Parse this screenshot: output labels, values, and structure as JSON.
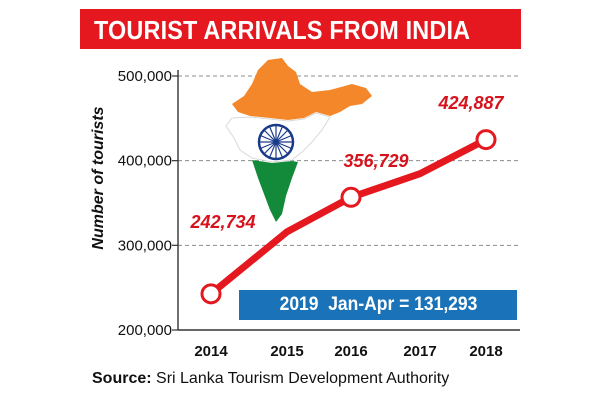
{
  "source": {
    "label": "Source:",
    "text": "Sri Lanka Tourism Development Authority"
  },
  "note": "2019  Jan-Apr = 131,293",
  "colors": {
    "title_bg": "#e4181e",
    "line": "#e4181e",
    "label": "#d6121c",
    "note_bg": "#1a73b8",
    "india_saffron": "#f4872a",
    "india_green": "#138a3a",
    "chakra": "#1a3a8a"
  },
  "chart_data": {
    "type": "line",
    "title": "TOURIST ARRIVALS FROM INDIA",
    "xlabel": "",
    "ylabel": "Number of tourists",
    "categories": [
      "2014",
      "2015",
      "2016",
      "2017",
      "2018"
    ],
    "series": [
      {
        "values": [
          242734,
          316000,
          356729,
          384628,
          424887
        ]
      }
    ],
    "data_labels": [
      {
        "index": 0,
        "text": "242,734"
      },
      {
        "index": 2,
        "text": "356,729"
      },
      {
        "index": 4,
        "text": "424,887"
      }
    ],
    "markers_at": [
      0,
      2,
      4
    ],
    "ylim": [
      200000,
      500000
    ],
    "yticks": [
      200000,
      300000,
      400000,
      500000
    ],
    "ytick_labels": [
      "200,000",
      "300,000",
      "400,000",
      "500,000"
    ],
    "grid": "horizontal dashed",
    "legend": "none"
  }
}
